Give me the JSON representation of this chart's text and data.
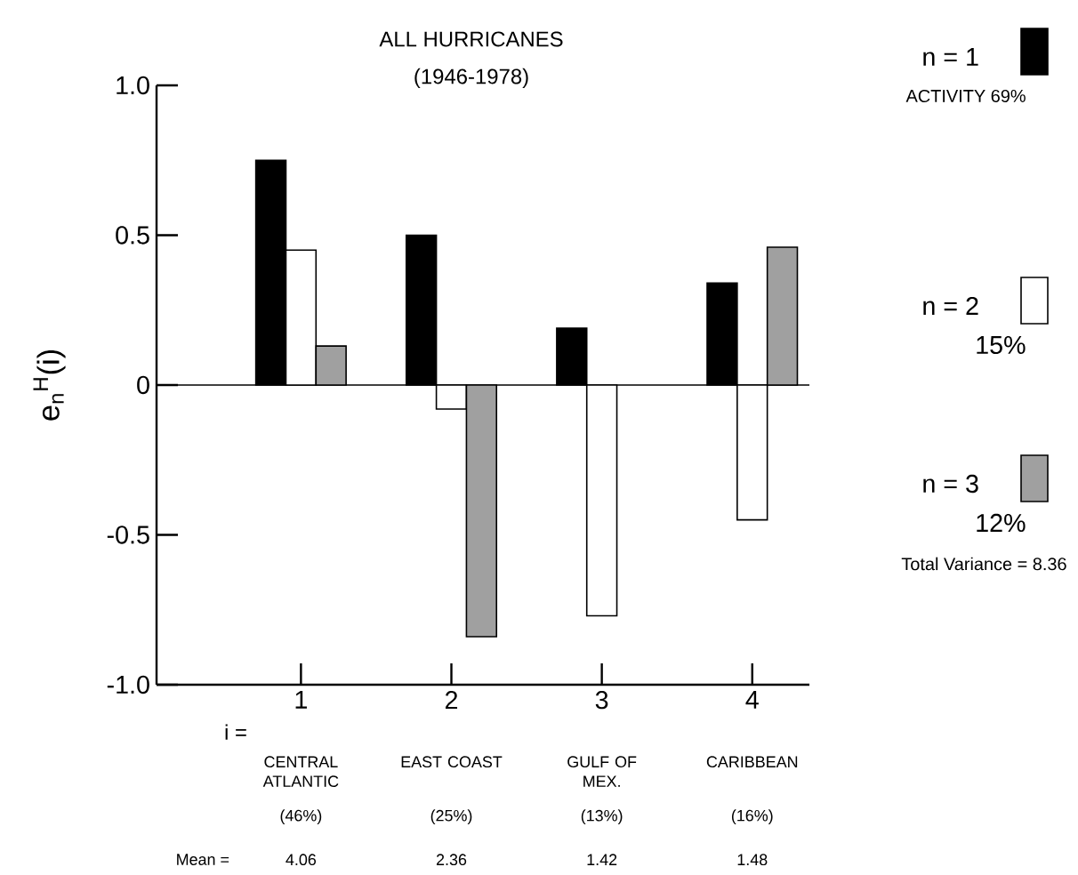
{
  "chart_data": {
    "type": "bar",
    "title": "ALL HURRICANES",
    "subtitle": "(1946-1978)",
    "ylabel": "e$_{n}$$^{H}$(i)",
    "xlabel": "i =",
    "categories": [
      "1",
      "2",
      "3",
      "4"
    ],
    "series": [
      {
        "name": "n = 1",
        "color": "#000000",
        "values": [
          0.75,
          0.5,
          0.19,
          0.34
        ]
      },
      {
        "name": "n = 2",
        "color": "#ffffff",
        "values": [
          0.45,
          -0.08,
          -0.77,
          -0.45
        ]
      },
      {
        "name": "n = 3",
        "color": "#a0a0a0",
        "values": [
          0.13,
          -0.84,
          null,
          0.46
        ]
      }
    ],
    "ylim": [
      -1,
      1
    ],
    "yticks": [
      {
        "value": -1,
        "label": "-1.0"
      },
      {
        "value": -0.5,
        "label": "-0.5"
      },
      0,
      {
        "value": 0.5,
        "label": "0.5"
      },
      {
        "value": 1,
        "label": "1.0"
      }
    ],
    "legend": "right",
    "annotations": [
      "CENTRAL ATLANTIC",
      "EAST COAST",
      "GULF OF MEX.",
      "CARIBBEAN",
      "(46%)",
      "(25%)",
      "(13%)",
      "(16%)",
      "Mean =",
      "4.06",
      "2.36",
      "1.42",
      "1.48",
      "ACTIVITY 69%",
      "15%",
      "12%",
      "Total Variance = 8.36"
    ]
  }
}
